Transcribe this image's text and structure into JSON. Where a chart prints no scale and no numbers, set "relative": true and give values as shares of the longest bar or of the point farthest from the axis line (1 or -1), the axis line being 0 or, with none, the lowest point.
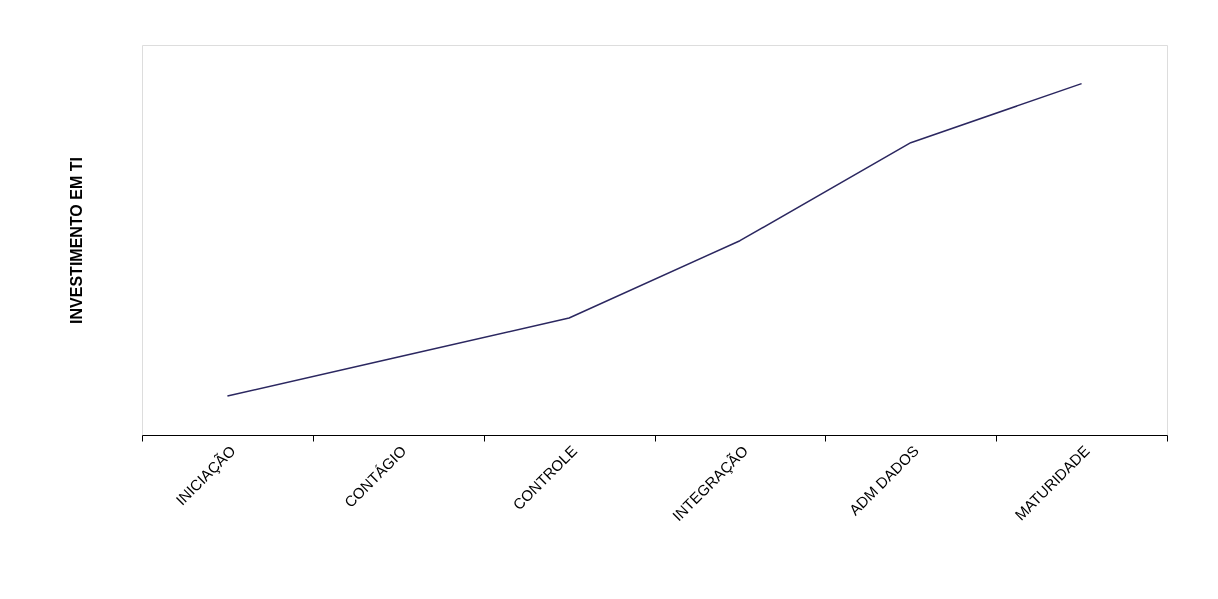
{
  "chart_data": {
    "type": "line",
    "relative": true,
    "ylabel": "INVESTIMENTO EM TI",
    "categories": [
      "INICIAÇÃO",
      "CONTÁGIO",
      "CONTROLE",
      "INTEGRAÇÃO",
      "ADM DADOS",
      "MATURIDADE"
    ],
    "series": [
      {
        "color": "#2b2760",
        "values": [
          0.111,
          0.222,
          0.333,
          0.553,
          0.832,
          1.0
        ]
      }
    ],
    "grid": false,
    "marker": "none",
    "line_style": "solid"
  }
}
